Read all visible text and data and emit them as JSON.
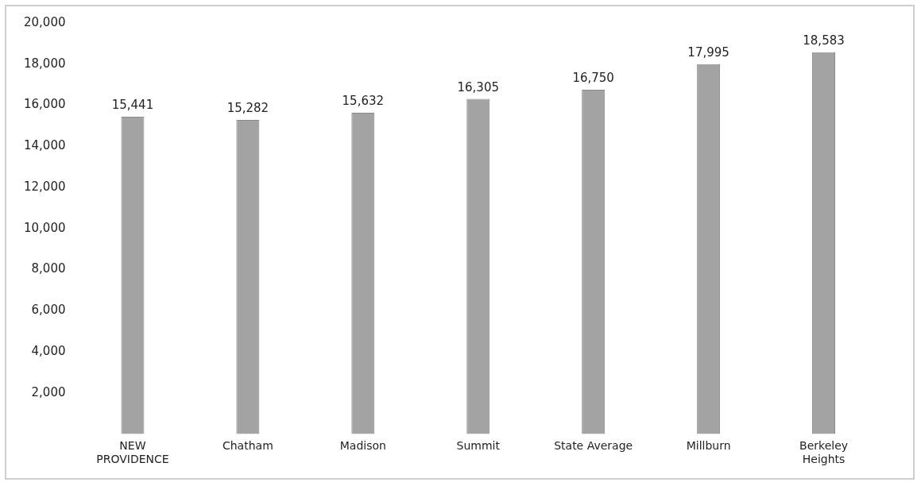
{
  "chart_data": {
    "type": "bar",
    "categories": [
      "NEW\nPROVIDENCE",
      "Chatham",
      "Madison",
      "Summit",
      "State Average",
      "Millburn",
      "Berkeley\nHeights"
    ],
    "values": [
      15441,
      15282,
      15632,
      16305,
      16750,
      17995,
      18583
    ],
    "value_labels": [
      "15,441",
      "15,282",
      "15,632",
      "16,305",
      "16,750",
      "17,995",
      "18,583"
    ],
    "color": "#a3a3a3",
    "ylim": [
      0,
      20000
    ],
    "yticks": [
      {
        "value": 2000,
        "label": "2,000"
      },
      {
        "value": 4000,
        "label": "4,000"
      },
      {
        "value": 6000,
        "label": "6,000"
      },
      {
        "value": 8000,
        "label": "8,000"
      },
      {
        "value": 10000,
        "label": "10,000"
      },
      {
        "value": 12000,
        "label": "12,000"
      },
      {
        "value": 14000,
        "label": "14,000"
      },
      {
        "value": 16000,
        "label": "16,000"
      },
      {
        "value": 18000,
        "label": "18,000"
      },
      {
        "value": 20000,
        "label": "20,000"
      }
    ],
    "grid": false,
    "legend": false
  }
}
